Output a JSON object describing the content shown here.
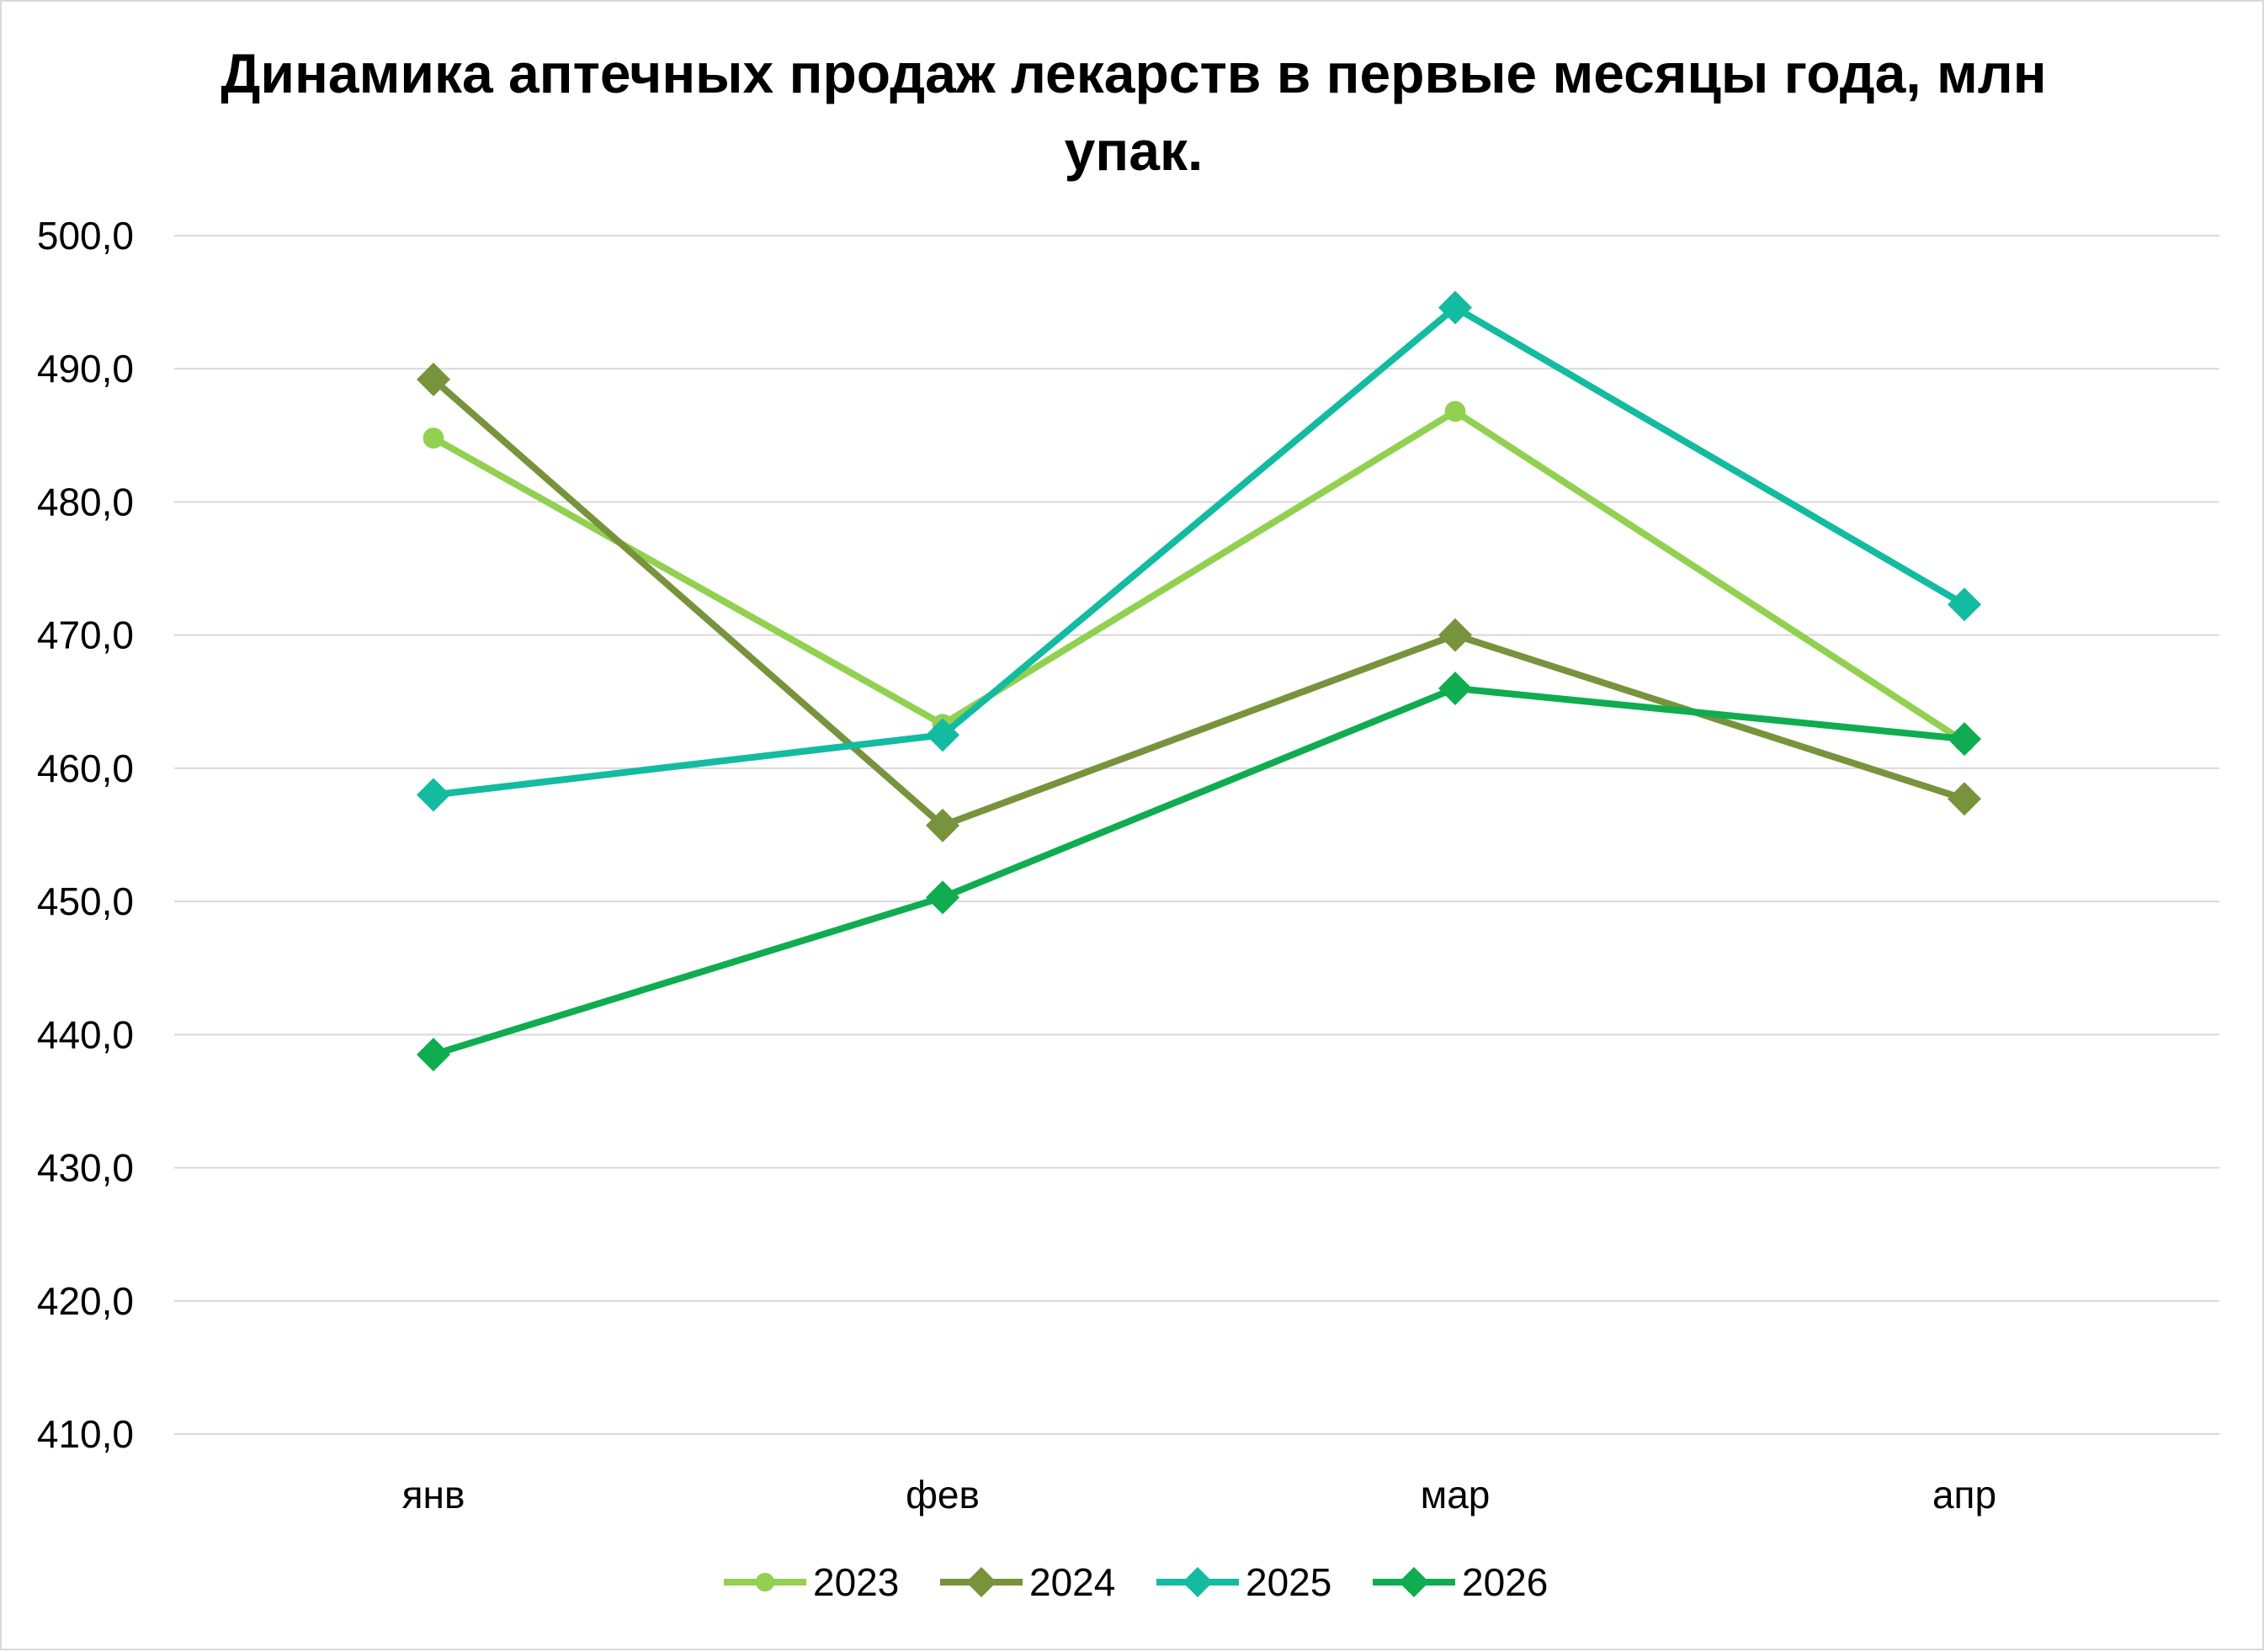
{
  "chart_data": {
    "type": "line",
    "title": "Динамика аптечных продаж лекарств в первые месяцы года, млн упак.",
    "title_lines": [
      "Динамика аптечных продаж лекарств в первые месяцы года, млн",
      "упак."
    ],
    "xlabel": "",
    "ylabel": "",
    "categories": [
      "янв",
      "фев",
      "мар",
      "апр"
    ],
    "ylim": [
      410,
      500
    ],
    "yticks": [
      "410,0",
      "420,0",
      "430,0",
      "440,0",
      "450,0",
      "460,0",
      "470,0",
      "480,0",
      "490,0",
      "500,0"
    ],
    "grid": true,
    "legend_position": "bottom",
    "series": [
      {
        "name": "2023",
        "values": [
          484.8,
          463.3,
          486.8,
          462.0
        ],
        "color": "#92d050",
        "marker": "circle"
      },
      {
        "name": "2024",
        "values": [
          489.2,
          455.7,
          470.0,
          457.7
        ],
        "color": "#77933c",
        "marker": "diamond"
      },
      {
        "name": "2025",
        "values": [
          458.0,
          462.5,
          494.6,
          472.3
        ],
        "color": "#13bba0",
        "marker": "diamond"
      },
      {
        "name": "2026",
        "values": [
          438.5,
          450.3,
          466.0,
          462.2
        ],
        "color": "#0fac50",
        "marker": "diamond"
      }
    ]
  }
}
